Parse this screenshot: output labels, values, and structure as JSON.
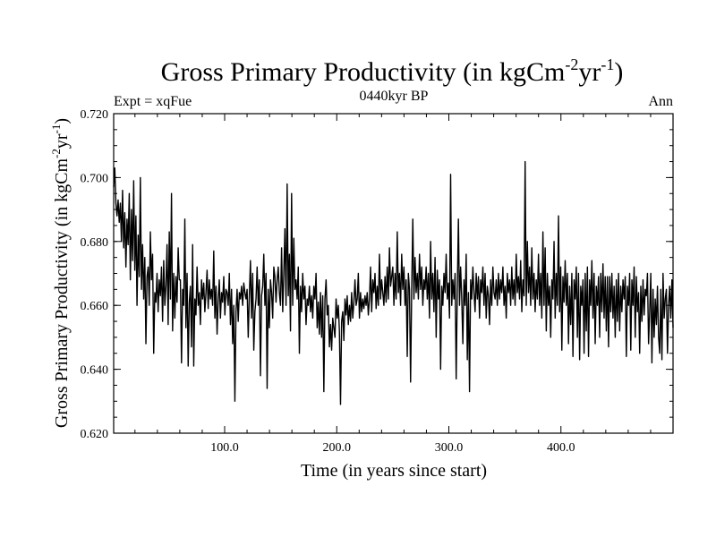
{
  "header": {
    "title_main": "Gross Primary Productivity (in kgCm",
    "title_sup1": "-2",
    "title_mid": "yr",
    "title_sup2": "-1",
    "title_end": ")",
    "experiment": "Expt = xqFue",
    "period": "0440kyr BP",
    "season": "Ann"
  },
  "axes": {
    "xlabel": "Time (in years since start)",
    "ylabel_main": "Gross Primary Productivity (in kgCm",
    "ylabel_sup1": "-2",
    "ylabel_mid": "yr",
    "ylabel_sup2": "-1",
    "ylabel_end": ")"
  },
  "colors": {
    "line": "#000000",
    "frame": "#000000",
    "background": "#ffffff"
  },
  "chart_data": {
    "type": "line",
    "title": "Gross Primary Productivity (in kgCm-2yr-1)",
    "subtitle": "0440kyr BP",
    "xlabel": "Time (in years since start)",
    "ylabel": "Gross Primary Productivity (in kgCm-2yr-1)",
    "xlim": [
      1,
      500
    ],
    "ylim": [
      0.62,
      0.72
    ],
    "xticks": [
      100,
      200,
      300,
      400
    ],
    "xtick_labels": [
      "100.0",
      "200.0",
      "300.0",
      "400.0"
    ],
    "yticks": [
      0.62,
      0.64,
      0.66,
      0.68,
      0.7,
      0.72
    ],
    "ytick_labels": [
      "0.620",
      "0.640",
      "0.660",
      "0.680",
      "0.700",
      "0.720"
    ],
    "grid": false,
    "series": [
      {
        "name": "Ann",
        "values": [
          0.697,
          0.703,
          0.692,
          0.688,
          0.693,
          0.686,
          0.692,
          0.68,
          0.696,
          0.678,
          0.689,
          0.672,
          0.687,
          0.679,
          0.695,
          0.668,
          0.69,
          0.674,
          0.699,
          0.671,
          0.688,
          0.66,
          0.682,
          0.669,
          0.7,
          0.665,
          0.679,
          0.662,
          0.675,
          0.648,
          0.669,
          0.672,
          0.66,
          0.683,
          0.668,
          0.676,
          0.645,
          0.664,
          0.661,
          0.67,
          0.658,
          0.668,
          0.663,
          0.672,
          0.655,
          0.674,
          0.66,
          0.666,
          0.679,
          0.654,
          0.683,
          0.662,
          0.695,
          0.652,
          0.67,
          0.656,
          0.669,
          0.661,
          0.678,
          0.668,
          0.668,
          0.642,
          0.665,
          0.66,
          0.687,
          0.653,
          0.67,
          0.641,
          0.661,
          0.666,
          0.647,
          0.679,
          0.641,
          0.662,
          0.657,
          0.672,
          0.66,
          0.664,
          0.654,
          0.668,
          0.662,
          0.667,
          0.658,
          0.664,
          0.671,
          0.659,
          0.668,
          0.662,
          0.665,
          0.66,
          0.677,
          0.656,
          0.666,
          0.651,
          0.662,
          0.668,
          0.656,
          0.664,
          0.661,
          0.669,
          0.657,
          0.665,
          0.664,
          0.66,
          0.67,
          0.654,
          0.665,
          0.648,
          0.66,
          0.63,
          0.658,
          0.665,
          0.655,
          0.664,
          0.662,
          0.666,
          0.66,
          0.667,
          0.664,
          0.662,
          0.665,
          0.65,
          0.663,
          0.674,
          0.656,
          0.67,
          0.646,
          0.658,
          0.662,
          0.672,
          0.66,
          0.668,
          0.638,
          0.663,
          0.666,
          0.676,
          0.66,
          0.67,
          0.634,
          0.665,
          0.653,
          0.668,
          0.664,
          0.656,
          0.672,
          0.669,
          0.661,
          0.668,
          0.672,
          0.664,
          0.66,
          0.678,
          0.658,
          0.67,
          0.684,
          0.66,
          0.698,
          0.663,
          0.676,
          0.652,
          0.695,
          0.66,
          0.681,
          0.665,
          0.668,
          0.662,
          0.672,
          0.645,
          0.666,
          0.658,
          0.67,
          0.662,
          0.666,
          0.654,
          0.662,
          0.66,
          0.666,
          0.658,
          0.663,
          0.656,
          0.666,
          0.662,
          0.67,
          0.653,
          0.661,
          0.651,
          0.664,
          0.65,
          0.663,
          0.633,
          0.662,
          0.668,
          0.657,
          0.66,
          0.647,
          0.654,
          0.646,
          0.656,
          0.653,
          0.65,
          0.662,
          0.656,
          0.66,
          0.652,
          0.629,
          0.655,
          0.658,
          0.649,
          0.662,
          0.657,
          0.663,
          0.654,
          0.66,
          0.655,
          0.664,
          0.656,
          0.661,
          0.668,
          0.66,
          0.662,
          0.67,
          0.656,
          0.664,
          0.658,
          0.662,
          0.659,
          0.663,
          0.66,
          0.664,
          0.657,
          0.662,
          0.672,
          0.658,
          0.668,
          0.664,
          0.67,
          0.659,
          0.666,
          0.66,
          0.676,
          0.662,
          0.668,
          0.664,
          0.66,
          0.669,
          0.661,
          0.672,
          0.662,
          0.678,
          0.666,
          0.669,
          0.672,
          0.66,
          0.67,
          0.662,
          0.683,
          0.664,
          0.67,
          0.66,
          0.676,
          0.665,
          0.672,
          0.66,
          0.668,
          0.644,
          0.67,
          0.665,
          0.636,
          0.665,
          0.687,
          0.662,
          0.675,
          0.664,
          0.67,
          0.662,
          0.676,
          0.665,
          0.672,
          0.66,
          0.668,
          0.665,
          0.672,
          0.662,
          0.67,
          0.656,
          0.68,
          0.662,
          0.67,
          0.658,
          0.675,
          0.65,
          0.671,
          0.662,
          0.668,
          0.64,
          0.666,
          0.66,
          0.67,
          0.664,
          0.676,
          0.662,
          0.667,
          0.656,
          0.701,
          0.66,
          0.668,
          0.662,
          0.67,
          0.637,
          0.665,
          0.687,
          0.66,
          0.672,
          0.662,
          0.648,
          0.668,
          0.66,
          0.676,
          0.643,
          0.664,
          0.633,
          0.668,
          0.662,
          0.672,
          0.664,
          0.658,
          0.67,
          0.662,
          0.669,
          0.656,
          0.668,
          0.664,
          0.672,
          0.66,
          0.67,
          0.656,
          0.666,
          0.663,
          0.654,
          0.668,
          0.66,
          0.672,
          0.664,
          0.662,
          0.668,
          0.66,
          0.67,
          0.662,
          0.668,
          0.664,
          0.672,
          0.66,
          0.666,
          0.656,
          0.67,
          0.664,
          0.668,
          0.66,
          0.672,
          0.662,
          0.668,
          0.66,
          0.676,
          0.664,
          0.669,
          0.662,
          0.674,
          0.658,
          0.668,
          0.663,
          0.705,
          0.66,
          0.68,
          0.664,
          0.672,
          0.66,
          0.678,
          0.662,
          0.67,
          0.658,
          0.668,
          0.662,
          0.676,
          0.66,
          0.67,
          0.656,
          0.683,
          0.66,
          0.678,
          0.652,
          0.67,
          0.66,
          0.666,
          0.65,
          0.668,
          0.662,
          0.68,
          0.656,
          0.67,
          0.66,
          0.688,
          0.658,
          0.672,
          0.646,
          0.669,
          0.661,
          0.674,
          0.66,
          0.67,
          0.648,
          0.666,
          0.654,
          0.67,
          0.644,
          0.668,
          0.662,
          0.672,
          0.65,
          0.67,
          0.643,
          0.666,
          0.66,
          0.668,
          0.645,
          0.67,
          0.652,
          0.672,
          0.644,
          0.668,
          0.66,
          0.674,
          0.656,
          0.67,
          0.648,
          0.666,
          0.66,
          0.669,
          0.65,
          0.67,
          0.658,
          0.673,
          0.656,
          0.669,
          0.652,
          0.669,
          0.647,
          0.669,
          0.658,
          0.67,
          0.656,
          0.666,
          0.65,
          0.668,
          0.655,
          0.67,
          0.652,
          0.666,
          0.658,
          0.668,
          0.662,
          0.669,
          0.644,
          0.666,
          0.66,
          0.67,
          0.646,
          0.668,
          0.66,
          0.672,
          0.65,
          0.669,
          0.658,
          0.664,
          0.645,
          0.666,
          0.655,
          0.668,
          0.657,
          0.665,
          0.663,
          0.67,
          0.648,
          0.658,
          0.67,
          0.642,
          0.665,
          0.65,
          0.662,
          0.654,
          0.666,
          0.65,
          0.645,
          0.665,
          0.643,
          0.67,
          0.656,
          0.662,
          0.665,
          0.645,
          0.66,
          0.666,
          0.656,
          0.668,
          0.653
        ]
      }
    ]
  }
}
